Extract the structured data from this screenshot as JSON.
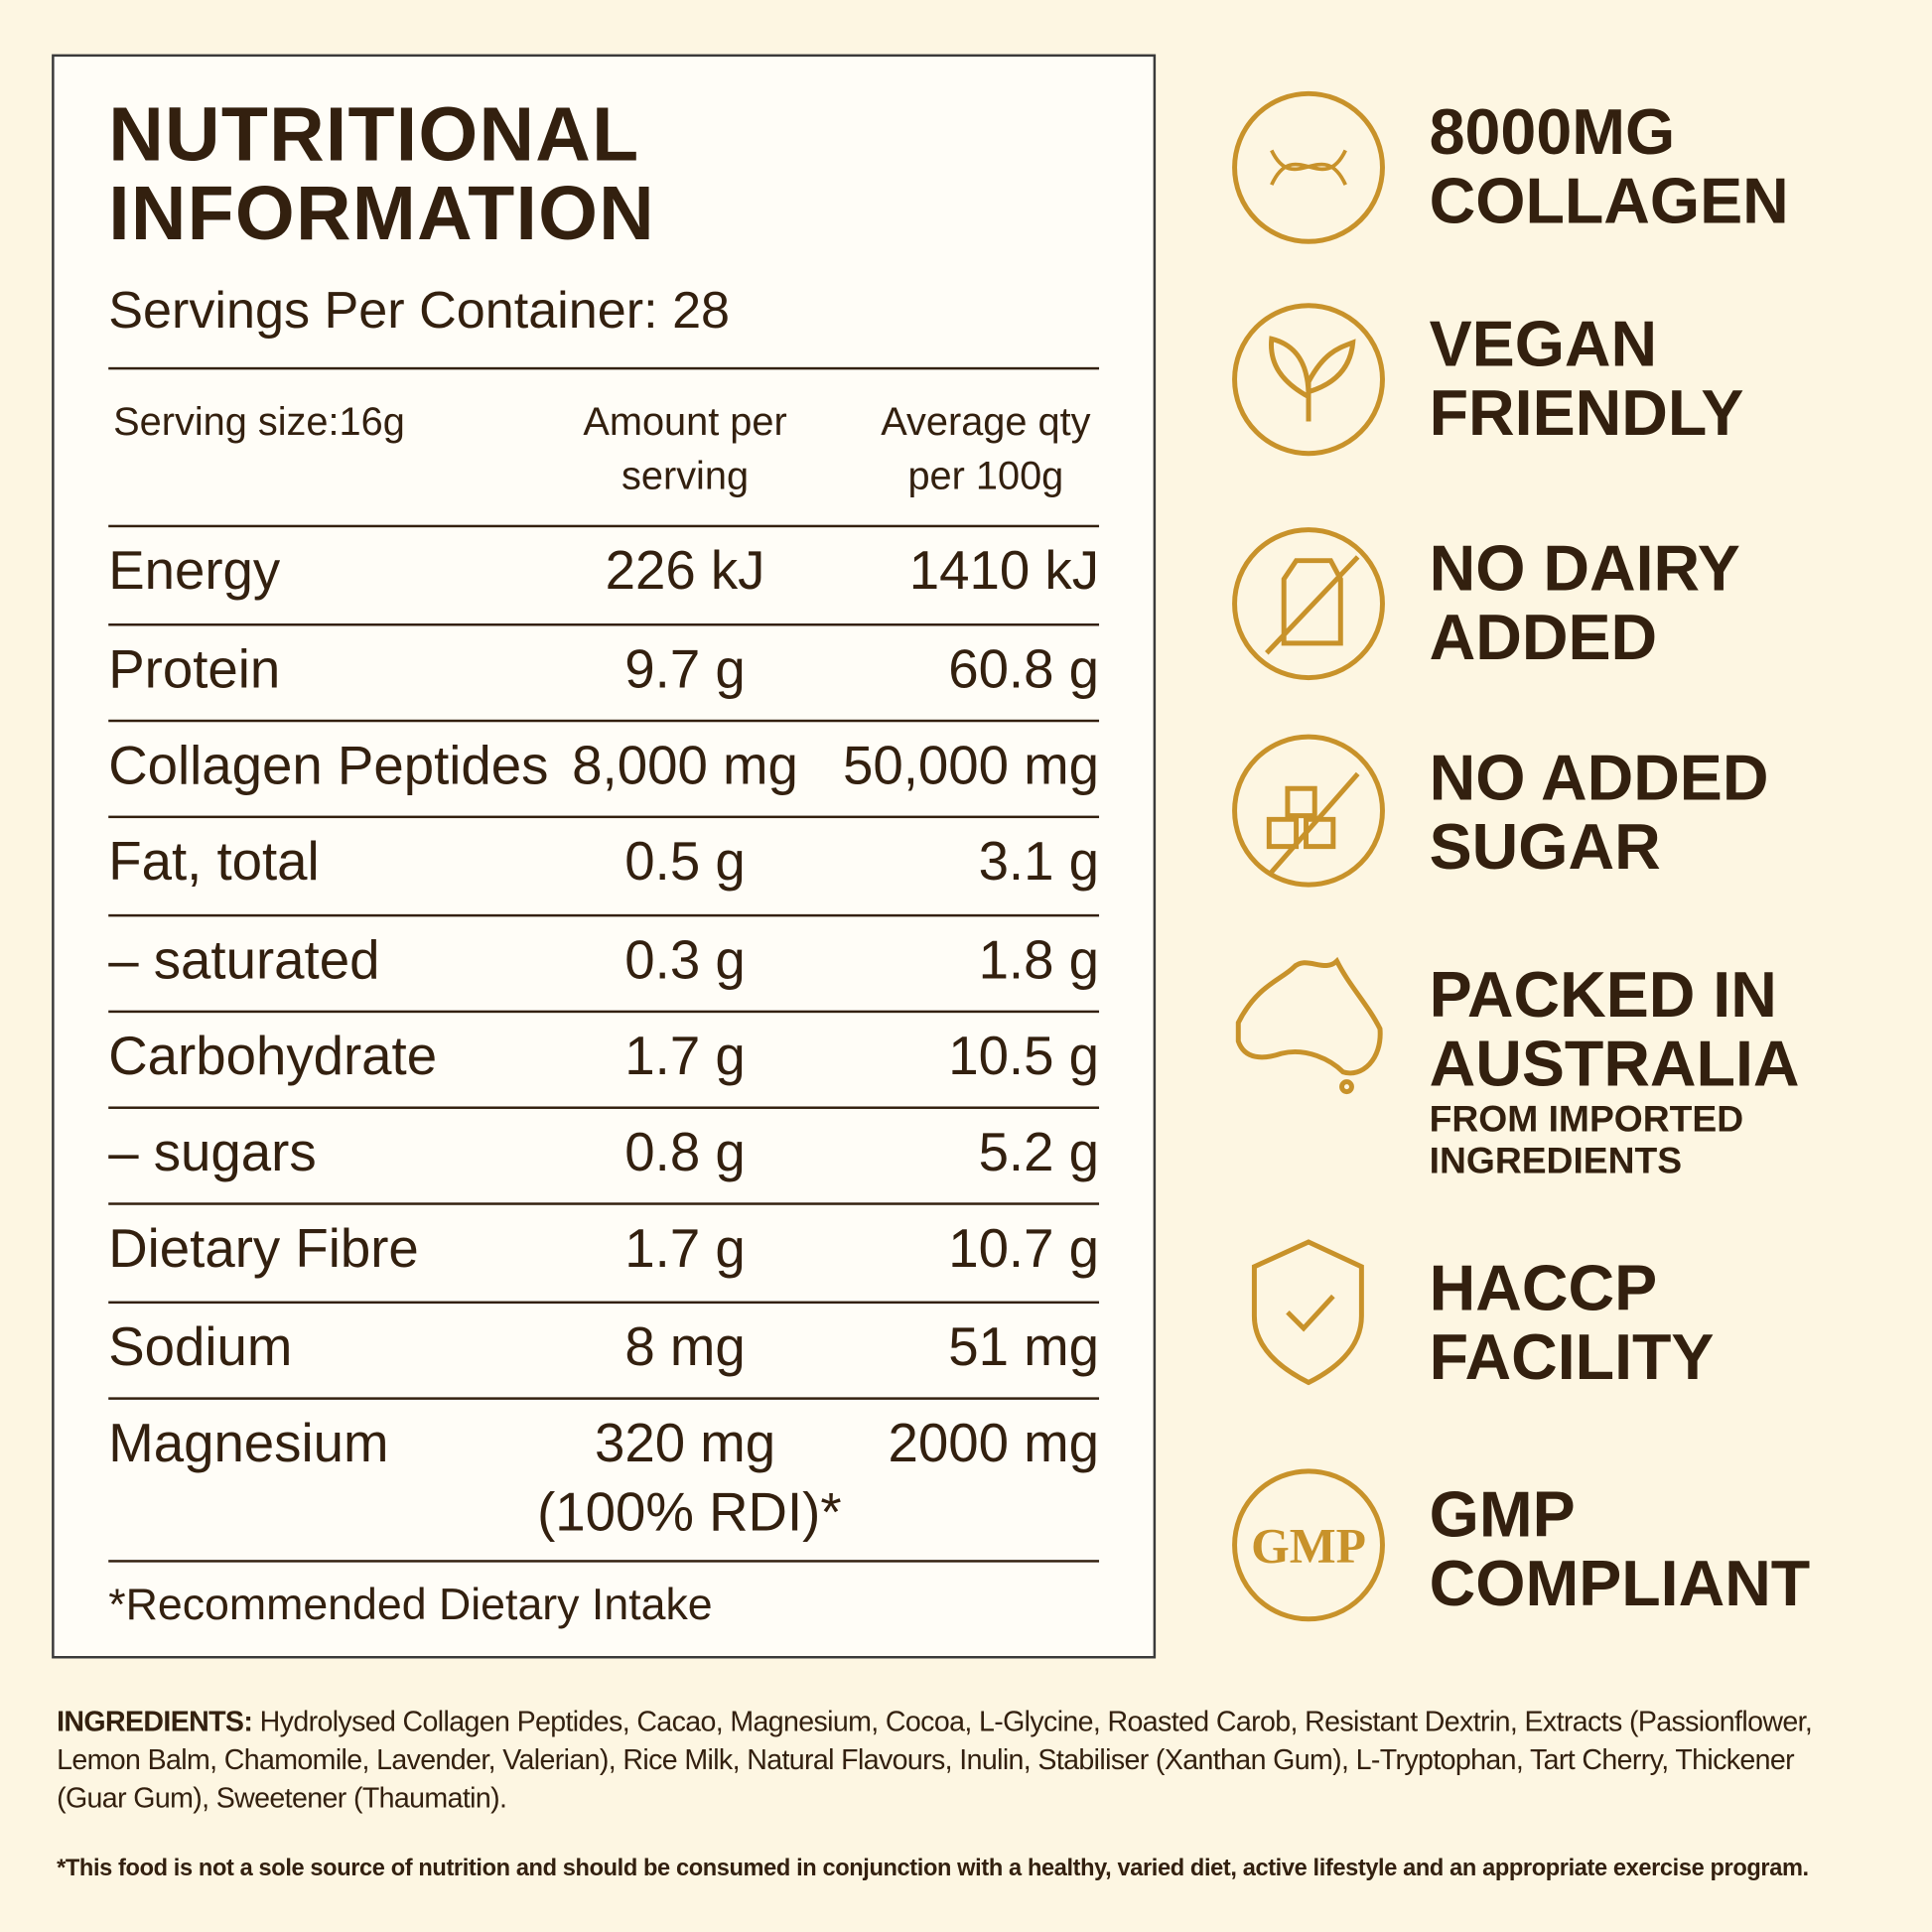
{
  "header": {
    "title": [
      "NUTRITIONAL",
      "INFORMATION"
    ],
    "servings": "Servings Per Container: 28"
  },
  "table": {
    "columns": [
      "Serving size:16g",
      [
        "Amount per",
        "serving"
      ],
      [
        "Average qty",
        "per 100g"
      ]
    ],
    "rows": [
      [
        "Energy",
        [
          "226 kJ"
        ],
        "1410 kJ"
      ],
      [
        "Protein",
        [
          "9.7 g"
        ],
        "60.8 g"
      ],
      [
        "Collagen Peptides",
        [
          "8,000 mg"
        ],
        "50,000 mg"
      ],
      [
        "Fat, total",
        [
          "0.5 g"
        ],
        "3.1 g"
      ],
      [
        "– saturated",
        [
          "0.3 g"
        ],
        "1.8 g"
      ],
      [
        "Carbohydrate",
        [
          "1.7 g"
        ],
        "10.5 g"
      ],
      [
        "– sugars",
        [
          "0.8 g"
        ],
        "5.2 g"
      ],
      [
        "Dietary Fibre",
        [
          "1.7 g"
        ],
        "10.7 g"
      ],
      [
        "Sodium",
        [
          "8 mg"
        ],
        "51 mg"
      ],
      [
        "Magnesium",
        [
          "320 mg",
          "(100% RDI)*"
        ],
        "2000 mg"
      ]
    ],
    "footnote": "*Recommended Dietary Intake"
  },
  "badges": [
    {
      "lines": [
        "8000MG",
        "COLLAGEN"
      ]
    },
    {
      "lines": [
        "VEGAN",
        "FRIENDLY"
      ]
    },
    {
      "lines": [
        "NO DAIRY",
        "ADDED"
      ]
    },
    {
      "lines": [
        "NO ADDED",
        "SUGAR"
      ]
    },
    {
      "lines": [
        "PACKED IN",
        "AUSTRALIA"
      ],
      "sub": [
        "FROM IMPORTED",
        "INGREDIENTS"
      ]
    },
    {
      "lines": [
        "HACCP",
        "FACILITY"
      ]
    },
    {
      "lines": [
        "GMP",
        "COMPLIANT"
      ],
      "icon": "GMP"
    }
  ],
  "ingredients": {
    "label": "INGREDIENTS:",
    "text": "Hydrolysed Collagen Peptides, Cacao, Magnesium, Cocoa, L-Glycine, Roasted Carob, Resistant Dextrin, Extracts (Passionflower, Lemon Balm, Chamomile, Lavender, Valerian), Rice Milk, Natural Flavours, Inulin, Stabiliser (Xanthan Gum), L-Tryptophan, Tart Cherry, Thickener (Guar Gum), Sweetener (Thaumatin)."
  },
  "disclaimer": "*This food is not a sole source of nutrition and should be consumed in conjunction with a healthy, varied diet, active lifestyle and an appropriate exercise program."
}
